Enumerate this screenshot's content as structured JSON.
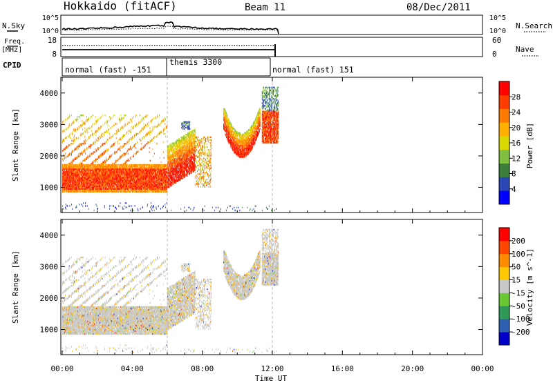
{
  "header": {
    "title": "Hokkaido (fitACF)",
    "beam": "Beam 11",
    "date": "08/Dec/2011"
  },
  "left_labels": {
    "nsky": "N.Sky",
    "freq": "Freq.",
    "mhz": "[MHz]",
    "cpid": "CPID"
  },
  "right_labels": {
    "nsearch": "N.Search",
    "nave": "Nave"
  },
  "noise_panel": {
    "left_ticks": [
      "10^5",
      "10^0"
    ],
    "right_ticks": [
      "10^5",
      "10^0"
    ]
  },
  "freq_panel": {
    "left_ticks": [
      "18",
      "8"
    ],
    "right_ticks": [
      "60",
      "0"
    ]
  },
  "cpid_segments": [
    {
      "label": "normal (fast) -151",
      "start_h": 0,
      "end_h": 6
    },
    {
      "label": "themis 3300",
      "start_h": 6,
      "end_h": 12
    },
    {
      "label": "normal (fast) 151",
      "start_h": 12,
      "end_h": 12.4
    }
  ],
  "colors": {
    "power_scale": [
      "#0000ff",
      "#2b47b5",
      "#3b7f3b",
      "#7fbf3f",
      "#d8d800",
      "#ffb000",
      "#ff7a00",
      "#ff3c00",
      "#ff0000"
    ],
    "velocity_scale": [
      "#0000c8",
      "#2e5fb0",
      "#2e9a55",
      "#69c832",
      "#c8c8c8",
      "#ffc800",
      "#ff8c00",
      "#ff4600",
      "#ff0000"
    ],
    "neutral_gray": "#c0c0c0"
  },
  "chart_data": [
    {
      "type": "heatmap",
      "quantity": "Power",
      "xlabel": "",
      "ylabel": "Slant Range [km]",
      "colorbar_label": "Power [dB]",
      "x_range_h": [
        0,
        24
      ],
      "ylim": [
        200,
        4500
      ],
      "yticks": [
        1000,
        2000,
        3000,
        4000
      ],
      "colorbar_ticks": [
        4,
        8,
        12,
        16,
        20,
        24,
        28
      ],
      "colorbar_range": [
        0,
        32
      ]
    },
    {
      "type": "heatmap",
      "quantity": "Velocity",
      "xlabel": "Time UT",
      "ylabel": "Slant Range [km]",
      "colorbar_label": "Velocity [m s^-1]",
      "x_range_h": [
        0,
        24
      ],
      "ylim": [
        200,
        4500
      ],
      "yticks": [
        1000,
        2000,
        3000,
        4000
      ],
      "xticks": [
        "00:00",
        "04:00",
        "08:00",
        "12:00",
        "16:00",
        "20:00",
        "00:00"
      ],
      "colorbar_ticks": [
        "200",
        "100",
        "50",
        "15",
        "-15",
        "-50",
        "-100",
        "-200"
      ]
    }
  ],
  "ticks": {
    "power_y": [
      "1000",
      "2000",
      "3000",
      "4000"
    ],
    "vel_y": [
      "1000",
      "2000",
      "3000",
      "4000"
    ],
    "power_cb": [
      "28",
      "24",
      "20",
      "16",
      "12",
      "8",
      "4"
    ],
    "vel_cb": [
      "200",
      "100",
      "50",
      "15",
      "-15",
      "-50",
      "-100",
      "-200"
    ],
    "x": [
      "00:00",
      "04:00",
      "08:00",
      "12:00",
      "16:00",
      "20:00",
      "00:00"
    ]
  }
}
